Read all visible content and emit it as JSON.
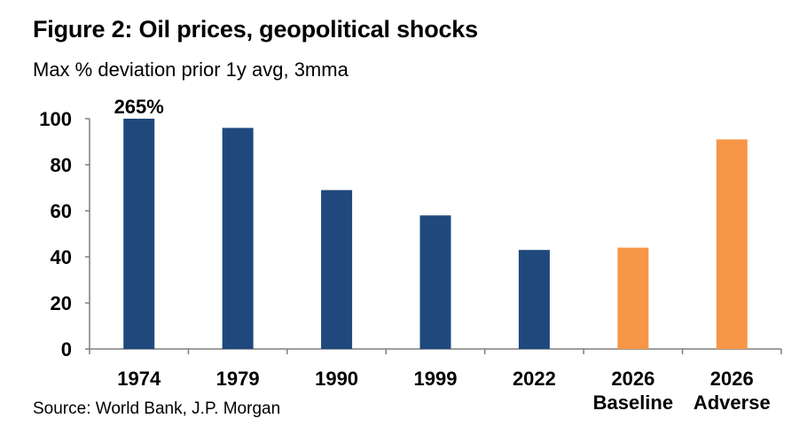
{
  "header": {
    "title": "Figure 2: Oil prices, geopolitical shocks",
    "subtitle": "Max % deviation prior 1y avg, 3mma"
  },
  "footer": {
    "source": "Source: World Bank, J.P. Morgan"
  },
  "chart_data": {
    "type": "bar",
    "title": "Figure 2: Oil prices, geopolitical shocks",
    "subtitle": "Max % deviation prior 1y avg, 3mma",
    "categories": [
      [
        "1974"
      ],
      [
        "1979"
      ],
      [
        "1990"
      ],
      [
        "1999"
      ],
      [
        "2022"
      ],
      [
        "2026",
        "Baseline"
      ],
      [
        "2026",
        "Adverse"
      ]
    ],
    "values": [
      100,
      96,
      69,
      58,
      43,
      44,
      91
    ],
    "bar_colors": [
      "#1f497d",
      "#1f497d",
      "#1f497d",
      "#1f497d",
      "#1f497d",
      "#f79646",
      "#f79646"
    ],
    "data_labels": [
      "265%",
      "",
      "",
      "",
      "",
      "",
      ""
    ],
    "xlabel": "",
    "ylabel": "",
    "ylim": [
      0,
      100
    ],
    "yticks": [
      0,
      20,
      40,
      60,
      80,
      100
    ],
    "grid": false,
    "legend": "none"
  }
}
